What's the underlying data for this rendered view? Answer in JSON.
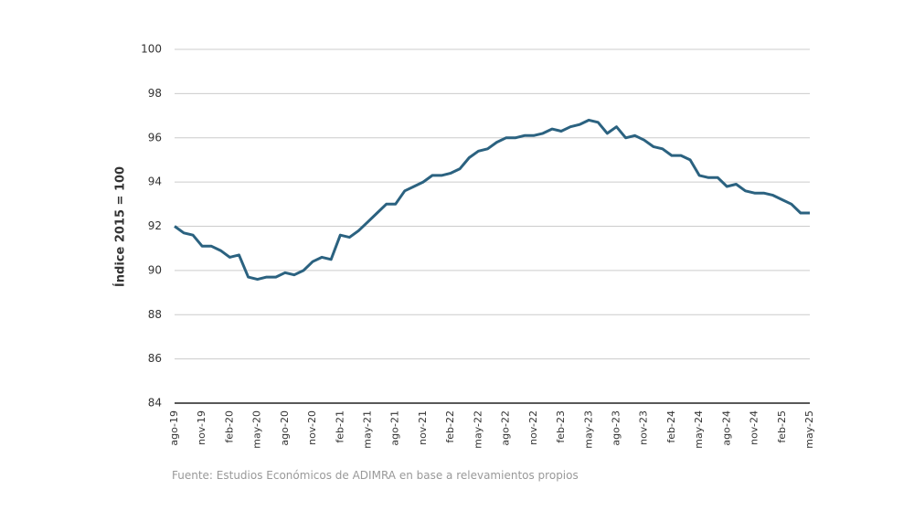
{
  "chart_data": {
    "type": "line",
    "y_label": "Índice 2015 = 100",
    "source": "Fuente: Estudios Económicos de ADIMRA en base a relevamientos propios",
    "categories": [
      "ago-19",
      null,
      null,
      "nov-19",
      null,
      null,
      "feb-20",
      null,
      null,
      "may-20",
      null,
      null,
      "ago-20",
      null,
      null,
      "nov-20",
      null,
      null,
      "feb-21",
      null,
      null,
      "may-21",
      null,
      null,
      "ago-21",
      null,
      null,
      "nov-21",
      null,
      null,
      "feb-22",
      null,
      null,
      "may-22",
      null,
      null,
      "ago-22",
      null,
      null,
      "nov-22",
      null,
      null,
      "feb-23",
      null,
      null,
      "may-23",
      null,
      null,
      "ago-23",
      null,
      null,
      "nov-23",
      null,
      null,
      "feb-24",
      null,
      null,
      "may-24",
      null,
      null,
      "ago-24",
      null,
      null,
      "nov-24",
      null,
      null,
      "feb-25",
      null,
      null,
      "may-25"
    ],
    "series": [
      {
        "name": "Índice",
        "color": "#2b6280",
        "values": [
          92.0,
          91.7,
          91.6,
          91.1,
          91.1,
          90.9,
          90.6,
          90.7,
          89.7,
          89.6,
          89.7,
          89.7,
          89.9,
          89.8,
          90.0,
          90.4,
          90.6,
          90.5,
          91.6,
          91.5,
          91.8,
          92.2,
          92.6,
          93.0,
          93.0,
          93.6,
          93.8,
          94.0,
          94.3,
          94.3,
          94.4,
          94.6,
          95.1,
          95.4,
          95.5,
          95.8,
          96.0,
          96.0,
          96.1,
          96.1,
          96.2,
          96.4,
          96.3,
          96.5,
          96.6,
          96.8,
          96.7,
          96.2,
          96.5,
          96.0,
          96.1,
          95.9,
          95.6,
          95.5,
          95.2,
          95.2,
          95.0,
          94.3,
          94.2,
          94.2,
          93.8,
          93.9,
          93.6,
          93.5,
          93.5,
          93.4,
          93.2,
          93.0,
          92.6,
          92.6
        ]
      }
    ],
    "ylim": [
      84,
      100
    ],
    "yticks": [
      84,
      86,
      88,
      90,
      92,
      94,
      96,
      98,
      100
    ],
    "grid": true
  }
}
